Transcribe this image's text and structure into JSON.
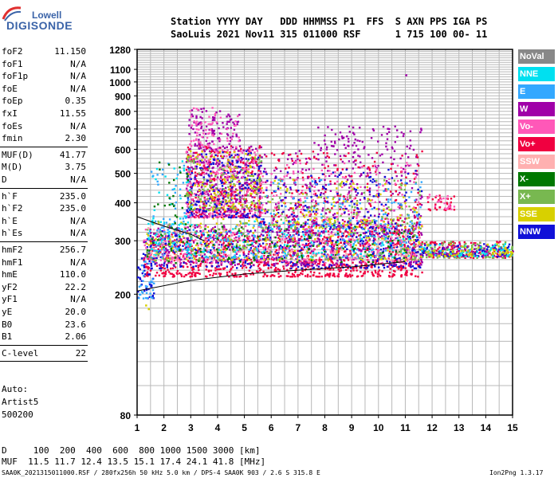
{
  "logo": {
    "top": "Lowell",
    "bottom": "DIGISONDE"
  },
  "header": {
    "line1": "Station YYYY DAY   DDD HHMMSS P1  FFS  S AXN PPS IGA PS",
    "line2": "SaoLuis 2021 Nov11 315 011000 RSF      1 715 100 00- 11"
  },
  "params": [
    {
      "label": "foF2",
      "value": "11.150"
    },
    {
      "label": "foF1",
      "value": "N/A"
    },
    {
      "label": "foF1p",
      "value": "N/A"
    },
    {
      "label": "foE",
      "value": "N/A"
    },
    {
      "label": "foEp",
      "value": "0.35"
    },
    {
      "label": "fxI",
      "value": "11.55"
    },
    {
      "label": "foEs",
      "value": "N/A"
    },
    {
      "label": "fmin",
      "value": "2.30"
    },
    {
      "label": "MUF(D)",
      "value": "41.77"
    },
    {
      "label": "M(D)",
      "value": "3.75"
    },
    {
      "label": "D",
      "value": "N/A"
    },
    {
      "label": "h`F",
      "value": "235.0"
    },
    {
      "label": "h`F2",
      "value": "235.0"
    },
    {
      "label": "h`E",
      "value": "N/A"
    },
    {
      "label": "h`Es",
      "value": "N/A"
    },
    {
      "label": "hmF2",
      "value": "256.7"
    },
    {
      "label": "hmF1",
      "value": "N/A"
    },
    {
      "label": "hmE",
      "value": "110.0"
    },
    {
      "label": "yF2",
      "value": "22.2"
    },
    {
      "label": "yF1",
      "value": "N/A"
    },
    {
      "label": "yE",
      "value": "20.0"
    },
    {
      "label": "B0",
      "value": "23.6"
    },
    {
      "label": "B1",
      "value": "2.06"
    },
    {
      "label": "C-level",
      "value": "22"
    }
  ],
  "auto": {
    "line1": "Auto:",
    "line2": "Artist5",
    "line3": "500200"
  },
  "legend": [
    {
      "label": "NoVal",
      "color": "#888888"
    },
    {
      "label": "NNE",
      "color": "#00e0f0"
    },
    {
      "label": "E",
      "color": "#33a8ff"
    },
    {
      "label": "W",
      "color": "#a000a8"
    },
    {
      "label": "Vo-",
      "color": "#ff58b8"
    },
    {
      "label": "Vo+",
      "color": "#f00040"
    },
    {
      "label": "SSW",
      "color": "#ffb0b0"
    },
    {
      "label": "X-",
      "color": "#007800"
    },
    {
      "label": "X+",
      "color": "#78b850"
    },
    {
      "label": "SSE",
      "color": "#d8d000"
    },
    {
      "label": "NNW",
      "color": "#1010d8"
    }
  ],
  "footer": {
    "d_row": "D     100  200  400  600  800 1000 1500 3000 [km]",
    "muf_row": "MUF  11.5 11.7 12.4 13.5 15.1 17.4 24.1 41.8 [MHz]",
    "file": "SAA0K_2021315011000.RSF / 280fx256h 50 kHz 5.0 km / DPS-4 SAA0K 903 / 2.6 S 315.8 E",
    "version": "Ion2Png 1.3.17"
  },
  "chart_data": {
    "type": "scatter",
    "x_range": [
      1,
      15
    ],
    "y_range": [
      80,
      1280
    ],
    "y_scale": "log",
    "x_ticks": [
      1,
      2,
      3,
      4,
      5,
      6,
      7,
      8,
      9,
      10,
      11,
      12,
      13,
      14,
      15
    ],
    "y_ticks": [
      80,
      200,
      300,
      400,
      500,
      600,
      700,
      800,
      900,
      1000,
      1100,
      1280
    ],
    "grid": true,
    "trace_lines": [
      {
        "name": "lower",
        "x": [
          1.0,
          3.0,
          5.0,
          7.0,
          9.0,
          11.0
        ],
        "y": [
          205,
          222,
          233,
          240,
          246,
          256
        ]
      },
      {
        "name": "upper",
        "x": [
          1.0,
          2.0,
          3.0,
          3.5
        ],
        "y": [
          360,
          335,
          315,
          300
        ]
      }
    ],
    "clusters": [
      {
        "x": [
          1.2,
          11.6
        ],
        "y": [
          230,
          320
        ],
        "color": "#f00040",
        "n": 950
      },
      {
        "x": [
          1.2,
          11.6
        ],
        "y": [
          245,
          330
        ],
        "color": "#1010d8",
        "n": 420
      },
      {
        "x": [
          1.2,
          11.6
        ],
        "y": [
          250,
          340
        ],
        "color": "#a000a8",
        "n": 420
      },
      {
        "x": [
          1.2,
          11.6
        ],
        "y": [
          255,
          345
        ],
        "color": "#ff58b8",
        "n": 300
      },
      {
        "x": [
          1.3,
          11.5
        ],
        "y": [
          260,
          360
        ],
        "color": "#d8d000",
        "n": 200
      },
      {
        "x": [
          1.3,
          11.5
        ],
        "y": [
          265,
          350
        ],
        "color": "#33a8ff",
        "n": 200
      },
      {
        "x": [
          1.3,
          11.5
        ],
        "y": [
          265,
          350
        ],
        "color": "#00e0f0",
        "n": 160
      },
      {
        "x": [
          1.3,
          11.5
        ],
        "y": [
          260,
          350
        ],
        "color": "#78b850",
        "n": 160
      },
      {
        "x": [
          1.3,
          11.5
        ],
        "y": [
          255,
          340
        ],
        "color": "#007800",
        "n": 120
      },
      {
        "x": [
          1.3,
          11.5
        ],
        "y": [
          260,
          340
        ],
        "color": "#ffb0b0",
        "n": 120
      },
      {
        "x": [
          11.5,
          15.0
        ],
        "y": [
          265,
          300
        ],
        "color": "#f00040",
        "n": 120
      },
      {
        "x": [
          11.5,
          15.0
        ],
        "y": [
          265,
          300
        ],
        "color": "#78b850",
        "n": 120
      },
      {
        "x": [
          11.5,
          15.0
        ],
        "y": [
          268,
          295
        ],
        "color": "#1010d8",
        "n": 90
      },
      {
        "x": [
          11.5,
          15.0
        ],
        "y": [
          268,
          295
        ],
        "color": "#a000a8",
        "n": 80
      },
      {
        "x": [
          11.5,
          15.0
        ],
        "y": [
          268,
          295
        ],
        "color": "#00e0f0",
        "n": 60
      },
      {
        "x": [
          11.5,
          15.0
        ],
        "y": [
          268,
          295
        ],
        "color": "#d8d000",
        "n": 60
      },
      {
        "x": [
          2.8,
          5.6
        ],
        "y": [
          360,
          620
        ],
        "color": "#a000a8",
        "n": 380
      },
      {
        "x": [
          2.8,
          5.6
        ],
        "y": [
          360,
          620
        ],
        "color": "#f00040",
        "n": 260
      },
      {
        "x": [
          2.8,
          5.6
        ],
        "y": [
          360,
          600
        ],
        "color": "#ff58b8",
        "n": 200
      },
      {
        "x": [
          2.8,
          5.6
        ],
        "y": [
          360,
          600
        ],
        "color": "#1010d8",
        "n": 180
      },
      {
        "x": [
          2.8,
          5.6
        ],
        "y": [
          380,
          600
        ],
        "color": "#d8d000",
        "n": 120
      },
      {
        "x": [
          2.8,
          5.6
        ],
        "y": [
          380,
          600
        ],
        "color": "#78b850",
        "n": 100
      },
      {
        "x": [
          2.9,
          4.8
        ],
        "y": [
          600,
          830
        ],
        "color": "#a000a8",
        "n": 110
      },
      {
        "x": [
          2.9,
          4.8
        ],
        "y": [
          600,
          830
        ],
        "color": "#ff58b8",
        "n": 70
      },
      {
        "x": [
          5.5,
          11.6
        ],
        "y": [
          320,
          600
        ],
        "color": "#a000a8",
        "n": 340
      },
      {
        "x": [
          5.5,
          11.6
        ],
        "y": [
          320,
          600
        ],
        "color": "#f00040",
        "n": 220
      },
      {
        "x": [
          5.5,
          11.6
        ],
        "y": [
          330,
          560
        ],
        "color": "#ff58b8",
        "n": 180
      },
      {
        "x": [
          5.5,
          11.6
        ],
        "y": [
          330,
          520
        ],
        "color": "#1010d8",
        "n": 150
      },
      {
        "x": [
          5.5,
          11.6
        ],
        "y": [
          330,
          480
        ],
        "color": "#d8d000",
        "n": 110
      },
      {
        "x": [
          5.5,
          11.6
        ],
        "y": [
          330,
          480
        ],
        "color": "#78b850",
        "n": 100
      },
      {
        "x": [
          5.5,
          11.6
        ],
        "y": [
          330,
          480
        ],
        "color": "#33a8ff",
        "n": 90
      },
      {
        "x": [
          7.5,
          11.6
        ],
        "y": [
          600,
          720
        ],
        "color": "#a000a8",
        "n": 80
      },
      {
        "x": [
          1.5,
          3.0
        ],
        "y": [
          280,
          560
        ],
        "color": "#00e0f0",
        "n": 50
      },
      {
        "x": [
          1.5,
          3.0
        ],
        "y": [
          280,
          560
        ],
        "color": "#33a8ff",
        "n": 50
      },
      {
        "x": [
          1.5,
          3.0
        ],
        "y": [
          280,
          560
        ],
        "color": "#007800",
        "n": 40
      },
      {
        "x": [
          11.8,
          12.8
        ],
        "y": [
          380,
          430
        ],
        "color": "#f00040",
        "n": 30
      },
      {
        "x": [
          11.8,
          12.8
        ],
        "y": [
          380,
          430
        ],
        "color": "#ff58b8",
        "n": 20
      },
      {
        "x": [
          1.0,
          1.6
        ],
        "y": [
          195,
          265
        ],
        "color": "#1010d8",
        "n": 40
      },
      {
        "x": [
          1.0,
          1.6
        ],
        "y": [
          195,
          265
        ],
        "color": "#33a8ff",
        "n": 30
      }
    ],
    "extras": [
      {
        "x": 11.0,
        "y": 1060,
        "color": "#a000a8"
      },
      {
        "x": 1.3,
        "y": 185,
        "color": "#d8d000"
      },
      {
        "x": 1.4,
        "y": 180,
        "color": "#d8d000"
      }
    ]
  }
}
